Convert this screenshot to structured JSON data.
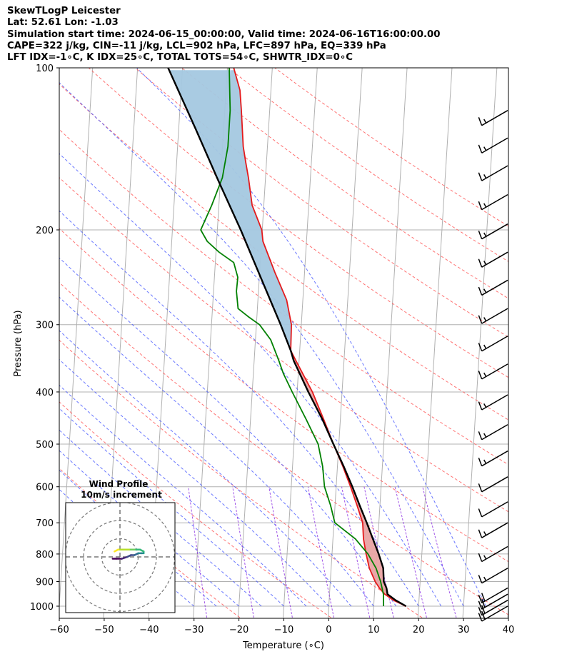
{
  "header": {
    "line1": "SkewTLogP Leicester",
    "line2": "Lat: 52.61   Lon: -1.03",
    "line3": "Simulation start time: 2024-06-15_00:00:00, Valid time: 2024-06-16T16:00:00.00",
    "line4": "CAPE=322 j/kg, CIN=-11 j/kg, LCL=902 hPa, LFC=897 hPa, EQ=339 hPa",
    "line5": "LFT IDX=-1∘C, K IDX=25∘C, TOTAL TOTS=54∘C, SHWTR_IDX=0∘C"
  },
  "chart_data": {
    "type": "line",
    "title": "SkewTLogP Leicester",
    "xlabel": "Temperature (∘C)",
    "ylabel": "Pressure (hPa)",
    "xlim": [
      -60,
      40
    ],
    "ylim": [
      1050,
      100
    ],
    "yscale": "log",
    "x_ticks": [
      -60,
      -50,
      -40,
      -30,
      -20,
      -10,
      0,
      10,
      20,
      30,
      40
    ],
    "x_tick_labels": [
      "−60",
      "−50",
      "−40",
      "−30",
      "−20",
      "−10",
      "0",
      "10",
      "20",
      "30",
      "40"
    ],
    "y_ticks": [
      100,
      200,
      300,
      400,
      500,
      600,
      700,
      800,
      900,
      1000
    ],
    "y_tick_labels": [
      "100",
      "200",
      "300",
      "400",
      "500",
      "600",
      "700",
      "800",
      "900",
      "1000"
    ],
    "grid": true,
    "series": [
      {
        "role": "temperature",
        "color": "#e41a1c",
        "points": [
          [
            1000,
            17.2
          ],
          [
            975,
            14.3
          ],
          [
            950,
            12.3
          ],
          [
            925,
            11.0
          ],
          [
            900,
            10.0
          ],
          [
            850,
            8.5
          ],
          [
            800,
            7.6
          ],
          [
            750,
            6.8
          ],
          [
            700,
            6.4
          ],
          [
            650,
            4.9
          ],
          [
            600,
            3.2
          ],
          [
            550,
            1.2
          ],
          [
            500,
            -1.2
          ],
          [
            450,
            -3.7
          ],
          [
            400,
            -6.6
          ],
          [
            350,
            -10.7
          ],
          [
            335,
            -12.0
          ],
          [
            300,
            -12.2
          ],
          [
            270,
            -13.6
          ],
          [
            240,
            -16.6
          ],
          [
            210,
            -19.7
          ],
          [
            200,
            -20.1
          ],
          [
            180,
            -22.6
          ],
          [
            160,
            -23.8
          ],
          [
            150,
            -24.6
          ],
          [
            140,
            -25.4
          ],
          [
            120,
            -26.3
          ],
          [
            110,
            -26.9
          ],
          [
            100,
            -28.6
          ]
        ]
      },
      {
        "role": "dewpoint",
        "color": "#008000",
        "points": [
          [
            1000,
            12.2
          ],
          [
            950,
            12.0
          ],
          [
            900,
            11.2
          ],
          [
            850,
            10.0
          ],
          [
            800,
            8.0
          ],
          [
            750,
            5.0
          ],
          [
            700,
            0.2
          ],
          [
            650,
            -1.0
          ],
          [
            600,
            -2.6
          ],
          [
            550,
            -3.3
          ],
          [
            500,
            -4.6
          ],
          [
            450,
            -7.6
          ],
          [
            400,
            -11.1
          ],
          [
            370,
            -13.3
          ],
          [
            350,
            -14.5
          ],
          [
            320,
            -16.6
          ],
          [
            300,
            -19.3
          ],
          [
            290,
            -21.9
          ],
          [
            280,
            -24.3
          ],
          [
            260,
            -24.9
          ],
          [
            245,
            -24.8
          ],
          [
            230,
            -25.9
          ],
          [
            220,
            -29.3
          ],
          [
            210,
            -32.1
          ],
          [
            200,
            -33.7
          ],
          [
            180,
            -31.6
          ],
          [
            160,
            -29.6
          ],
          [
            140,
            -28.8
          ],
          [
            120,
            -28.8
          ],
          [
            100,
            -29.6
          ]
        ]
      },
      {
        "role": "parcel",
        "color": "#000000",
        "points": [
          [
            1000,
            17.2
          ],
          [
            975,
            14.8
          ],
          [
            950,
            12.9
          ],
          [
            925,
            12.6
          ],
          [
            900,
            11.9
          ],
          [
            850,
            11.6
          ],
          [
            800,
            10.4
          ],
          [
            750,
            8.9
          ],
          [
            700,
            7.3
          ],
          [
            650,
            5.5
          ],
          [
            600,
            3.6
          ],
          [
            550,
            1.4
          ],
          [
            500,
            -1.2
          ],
          [
            450,
            -4.0
          ],
          [
            400,
            -7.5
          ],
          [
            350,
            -11.2
          ],
          [
            335,
            -12.0
          ],
          [
            300,
            -14.6
          ],
          [
            250,
            -19.2
          ],
          [
            200,
            -24.8
          ],
          [
            160,
            -30.8
          ],
          [
            130,
            -36.2
          ],
          [
            100,
            -43.2
          ]
        ]
      }
    ],
    "cape_fill_color": "#a4c8e0",
    "cin_fill_color": "#e9a3a3",
    "wind_barbs": [
      {
        "p": 1000,
        "speed_kt": 20,
        "dir": 240
      },
      {
        "p": 975,
        "speed_kt": 20,
        "dir": 240
      },
      {
        "p": 950,
        "speed_kt": 20,
        "dir": 240
      },
      {
        "p": 925,
        "speed_kt": 20,
        "dir": 240
      },
      {
        "p": 850,
        "speed_kt": 15,
        "dir": 250
      },
      {
        "p": 775,
        "speed_kt": 15,
        "dir": 250
      },
      {
        "p": 700,
        "speed_kt": 15,
        "dir": 250
      },
      {
        "p": 640,
        "speed_kt": 10,
        "dir": 250
      },
      {
        "p": 575,
        "speed_kt": 10,
        "dir": 250
      },
      {
        "p": 515,
        "speed_kt": 15,
        "dir": 250
      },
      {
        "p": 460,
        "speed_kt": 15,
        "dir": 250
      },
      {
        "p": 405,
        "speed_kt": 15,
        "dir": 250
      },
      {
        "p": 355,
        "speed_kt": 15,
        "dir": 250
      },
      {
        "p": 315,
        "speed_kt": 15,
        "dir": 250
      },
      {
        "p": 280,
        "speed_kt": 15,
        "dir": 250
      },
      {
        "p": 248,
        "speed_kt": 15,
        "dir": 250
      },
      {
        "p": 220,
        "speed_kt": 15,
        "dir": 250
      },
      {
        "p": 195,
        "speed_kt": 15,
        "dir": 250
      },
      {
        "p": 172,
        "speed_kt": 15,
        "dir": 250
      },
      {
        "p": 152,
        "speed_kt": 15,
        "dir": 250
      },
      {
        "p": 135,
        "speed_kt": 15,
        "dir": 250
      },
      {
        "p": 120,
        "speed_kt": 15,
        "dir": 250
      }
    ],
    "hodograph": {
      "title_line1": "Wind Profile",
      "title_line2": "10m/s increment",
      "rings_ms": [
        10,
        20,
        30
      ],
      "points": [
        [
          -4,
          -1
        ],
        [
          -2,
          -1
        ],
        [
          1,
          -1
        ],
        [
          4,
          0
        ],
        [
          6,
          1
        ],
        [
          8,
          1
        ],
        [
          10,
          2
        ],
        [
          12,
          2
        ],
        [
          13,
          2
        ],
        [
          13,
          3
        ],
        [
          11,
          4
        ],
        [
          8,
          4
        ],
        [
          5,
          4
        ],
        [
          2,
          4
        ],
        [
          -1,
          4
        ],
        [
          -3,
          3
        ]
      ]
    }
  }
}
